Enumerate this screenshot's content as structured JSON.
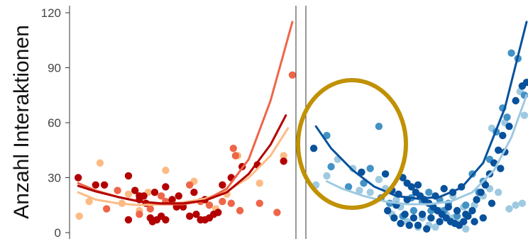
{
  "chart_data": [
    {
      "type": "scatter",
      "panel": "left",
      "ylabel": "Anzahl Interaktionen",
      "ylim": [
        0,
        120
      ],
      "yticks": [
        0,
        30,
        60,
        90,
        120
      ],
      "xlim": [
        0,
        10
      ],
      "grid": false,
      "series": [
        {
          "color": "#fdbb84",
          "points": [
            [
              0.25,
              9
            ],
            [
              0.7,
              17
            ],
            [
              1.2,
              38
            ],
            [
              2.2,
              16
            ],
            [
              2.5,
              21
            ],
            [
              3.0,
              12
            ],
            [
              3.4,
              22
            ],
            [
              4.2,
              34
            ],
            [
              5.5,
              28
            ],
            [
              6.5,
              13
            ],
            [
              7.0,
              21
            ],
            [
              7.5,
              42
            ],
            [
              8.5,
              27
            ],
            [
              9.6,
              42
            ]
          ],
          "curve": [
            [
              0.2,
              22
            ],
            [
              1,
              18
            ],
            [
              2,
              16
            ],
            [
              3,
              15
            ],
            [
              4,
              15.5
            ],
            [
              5,
              16.5
            ],
            [
              6,
              18.5
            ],
            [
              7,
              22.5
            ],
            [
              8,
              30
            ],
            [
              9,
              42
            ],
            [
              9.8,
              57
            ]
          ]
        },
        {
          "color": "#ef6548",
          "points": [
            [
              1.5,
              13
            ],
            [
              2.0,
              23
            ],
            [
              3.0,
              10
            ],
            [
              3.5,
              13
            ],
            [
              4.2,
              17
            ],
            [
              4.5,
              18
            ],
            [
              5.8,
              17
            ],
            [
              6.2,
              15
            ],
            [
              6.8,
              17
            ],
            [
              7.2,
              16
            ],
            [
              7.6,
              12
            ],
            [
              8.5,
              16
            ],
            [
              9.3,
              11
            ],
            [
              10.0,
              86
            ],
            [
              7.3,
              46
            ],
            [
              7.4,
              42
            ],
            [
              5.3,
              26
            ],
            [
              4.0,
              20
            ]
          ],
          "curve": [
            [
              0.2,
              27
            ],
            [
              1,
              23
            ],
            [
              2,
              19.5
            ],
            [
              3,
              17
            ],
            [
              4,
              15.5
            ],
            [
              5,
              15.5
            ],
            [
              6,
              17.5
            ],
            [
              7,
              24
            ],
            [
              8,
              40
            ],
            [
              9,
              72
            ],
            [
              10,
              115
            ]
          ]
        },
        {
          "color": "#b30000",
          "points": [
            [
              0.2,
              30
            ],
            [
              1.0,
              26
            ],
            [
              1.4,
              26
            ],
            [
              2.5,
              31
            ],
            [
              2.8,
              23
            ],
            [
              3.0,
              20
            ],
            [
              3.2,
              20
            ],
            [
              3.3,
              16
            ],
            [
              3.5,
              8
            ],
            [
              3.6,
              6
            ],
            [
              3.8,
              7
            ],
            [
              4.0,
              9
            ],
            [
              4.2,
              7
            ],
            [
              4.5,
              18
            ],
            [
              4.7,
              14
            ],
            [
              5.0,
              14
            ],
            [
              5.3,
              9
            ],
            [
              5.6,
              10
            ],
            [
              5.8,
              7
            ],
            [
              6.0,
              7
            ],
            [
              6.2,
              8
            ],
            [
              6.4,
              10
            ],
            [
              6.6,
              11
            ],
            [
              6.8,
              26
            ],
            [
              7.2,
              30
            ],
            [
              7.7,
              36
            ],
            [
              8.4,
              37
            ],
            [
              9.6,
              39
            ],
            [
              2.5,
              7
            ],
            [
              3.0,
              18
            ],
            [
              4.8,
              20
            ],
            [
              5.5,
              22
            ],
            [
              6.0,
              18
            ],
            [
              3.7,
              22
            ],
            [
              4.2,
              25
            ]
          ],
          "curve": [
            [
              0.2,
              25.5
            ],
            [
              1,
              22.5
            ],
            [
              2,
              19.5
            ],
            [
              3,
              17
            ],
            [
              4,
              16
            ],
            [
              5,
              16
            ],
            [
              6,
              17.5
            ],
            [
              7,
              22
            ],
            [
              8,
              32
            ],
            [
              9,
              48
            ],
            [
              9.7,
              64
            ]
          ]
        }
      ]
    },
    {
      "type": "scatter",
      "panel": "right",
      "ylim": [
        0,
        120
      ],
      "xlim": [
        0,
        10
      ],
      "grid": false,
      "annotation": {
        "shape": "ellipse",
        "color": "#c09100"
      },
      "series": [
        {
          "color": "#9ecae1",
          "points": [
            [
              0.3,
              26
            ],
            [
              0.8,
              31
            ],
            [
              1.3,
              40
            ],
            [
              2.0,
              35
            ],
            [
              2.3,
              23
            ],
            [
              2.8,
              22
            ],
            [
              3.2,
              29
            ],
            [
              3.5,
              24
            ],
            [
              4.0,
              18
            ],
            [
              4.5,
              6
            ],
            [
              5.0,
              3
            ],
            [
              5.2,
              8
            ],
            [
              5.5,
              4
            ],
            [
              5.8,
              3
            ],
            [
              6.0,
              12
            ],
            [
              6.3,
              10
            ],
            [
              6.6,
              8
            ],
            [
              6.9,
              5
            ],
            [
              7.2,
              2
            ],
            [
              7.6,
              15
            ],
            [
              8.0,
              20
            ],
            [
              8.3,
              24
            ],
            [
              8.7,
              22
            ],
            [
              9.2,
              13
            ],
            [
              9.5,
              15
            ],
            [
              9.8,
              16
            ],
            [
              9.9,
              64
            ],
            [
              9.7,
              77
            ],
            [
              9.0,
              60
            ],
            [
              8.4,
              57
            ],
            [
              4.2,
              14
            ],
            [
              3.8,
              10
            ],
            [
              6.6,
              20
            ],
            [
              7.1,
              14
            ]
          ],
          "curve": [
            [
              0.8,
              28
            ],
            [
              1.5,
              24
            ],
            [
              2.5,
              20
            ],
            [
              3.5,
              17
            ],
            [
              4.5,
              15.5
            ],
            [
              5.5,
              15.5
            ],
            [
              6.5,
              17
            ],
            [
              7.5,
              22
            ],
            [
              8.5,
              34
            ],
            [
              9.3,
              52
            ],
            [
              10,
              75
            ]
          ]
        },
        {
          "color": "#4292c6",
          "points": [
            [
              0.8,
              53
            ],
            [
              1.0,
              36
            ],
            [
              1.8,
              25
            ],
            [
              2.8,
              35
            ],
            [
              3.2,
              58
            ],
            [
              3.7,
              16
            ],
            [
              4.3,
              9
            ],
            [
              4.7,
              19
            ],
            [
              5.2,
              17
            ],
            [
              5.6,
              12
            ],
            [
              6.0,
              18
            ],
            [
              6.4,
              16
            ],
            [
              6.8,
              9
            ],
            [
              7.2,
              15
            ],
            [
              7.5,
              32
            ],
            [
              8.0,
              28
            ],
            [
              8.3,
              40
            ],
            [
              8.6,
              55
            ],
            [
              8.9,
              68
            ],
            [
              9.1,
              63
            ],
            [
              9.3,
              98
            ],
            [
              9.6,
              95
            ],
            [
              9.8,
              80
            ],
            [
              9.9,
              75
            ],
            [
              5.5,
              22
            ],
            [
              4.8,
              12
            ],
            [
              3.3,
              19
            ],
            [
              6.2,
              12
            ],
            [
              7.8,
              22
            ],
            [
              2.5,
              27
            ]
          ],
          "curve": null
        },
        {
          "color": "#08519c",
          "points": [
            [
              0.2,
              46
            ],
            [
              2.4,
              33
            ],
            [
              3.5,
              32
            ],
            [
              3.8,
              23
            ],
            [
              4.1,
              21
            ],
            [
              4.3,
              30
            ],
            [
              4.5,
              27
            ],
            [
              4.7,
              25
            ],
            [
              4.9,
              22
            ],
            [
              5.1,
              20
            ],
            [
              5.3,
              18
            ],
            [
              5.5,
              16
            ],
            [
              5.7,
              14
            ],
            [
              5.9,
              12
            ],
            [
              6.1,
              10
            ],
            [
              6.3,
              8
            ],
            [
              6.5,
              6
            ],
            [
              6.7,
              5
            ],
            [
              6.9,
              4
            ],
            [
              7.1,
              6
            ],
            [
              7.3,
              9
            ],
            [
              7.5,
              12
            ],
            [
              7.7,
              18
            ],
            [
              7.9,
              22
            ],
            [
              8.1,
              26
            ],
            [
              8.3,
              32
            ],
            [
              8.5,
              38
            ],
            [
              8.7,
              45
            ],
            [
              8.9,
              53
            ],
            [
              9.2,
              58
            ],
            [
              9.5,
              72
            ],
            [
              9.8,
              80
            ],
            [
              10.0,
              82
            ],
            [
              4.0,
              15
            ],
            [
              4.4,
              10
            ],
            [
              4.8,
              8
            ],
            [
              5.2,
              10
            ],
            [
              5.6,
              8
            ],
            [
              6.0,
              6
            ],
            [
              6.4,
              14
            ],
            [
              6.8,
              12
            ],
            [
              7.2,
              10
            ],
            [
              7.6,
              6
            ],
            [
              8.0,
              8
            ],
            [
              8.4,
              16
            ],
            [
              5.0,
              4
            ],
            [
              5.4,
              2
            ],
            [
              4.6,
              4
            ],
            [
              4.2,
              5
            ],
            [
              3.9,
              8
            ],
            [
              6.6,
              22
            ],
            [
              7.0,
              25
            ],
            [
              5.8,
              20
            ],
            [
              6.2,
              24
            ],
            [
              5.0,
              26
            ],
            [
              4.5,
              18
            ],
            [
              3.6,
              12
            ],
            [
              9.0,
              44
            ],
            [
              8.8,
              35
            ]
          ],
          "curve": [
            [
              0.3,
              58
            ],
            [
              1,
              46
            ],
            [
              2,
              34
            ],
            [
              3,
              25
            ],
            [
              4,
              20
            ],
            [
              5,
              18.5
            ],
            [
              6,
              19.5
            ],
            [
              7,
              24.5
            ],
            [
              8,
              38
            ],
            [
              9,
              68
            ],
            [
              10,
              115
            ]
          ]
        }
      ]
    }
  ]
}
